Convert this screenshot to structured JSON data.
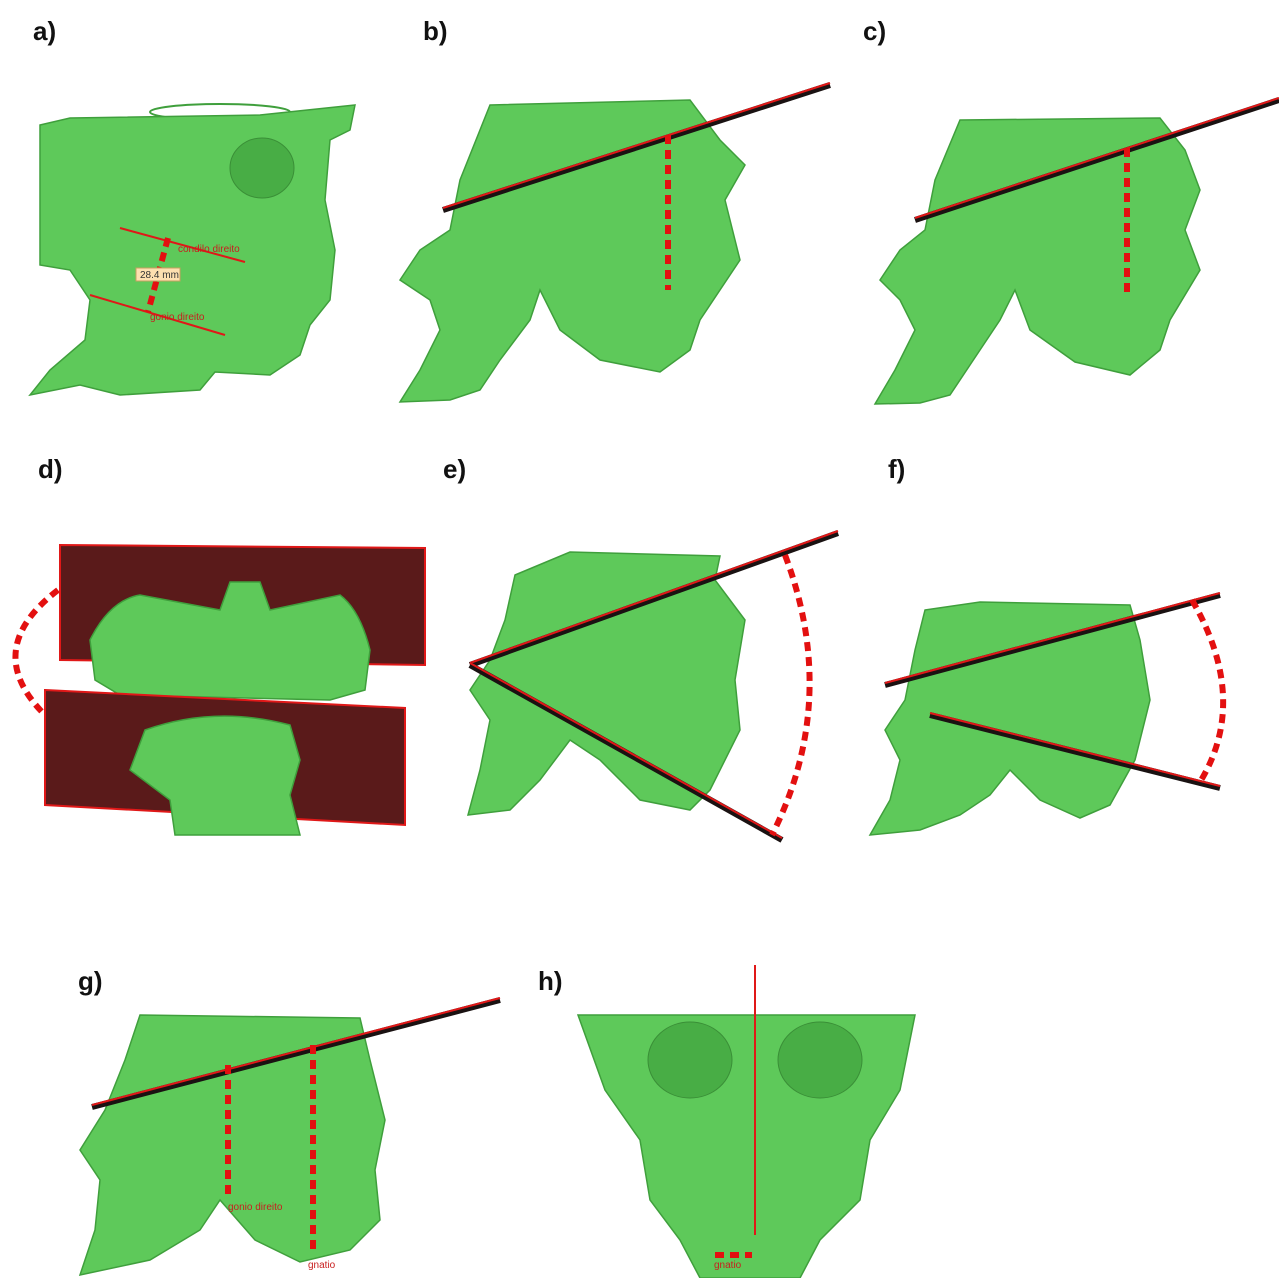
{
  "panels": [
    {
      "label": "a)",
      "annotations": [
        "condilo direito",
        "28.4 mm",
        "gonio direito"
      ]
    },
    {
      "label": "b)"
    },
    {
      "label": "c)"
    },
    {
      "label": "d)"
    },
    {
      "label": "e)"
    },
    {
      "label": "f)"
    },
    {
      "label": "g)",
      "annotations": [
        "gonio direito",
        "gnatio"
      ]
    },
    {
      "label": "h)",
      "annotations": [
        "gnatio"
      ]
    }
  ]
}
